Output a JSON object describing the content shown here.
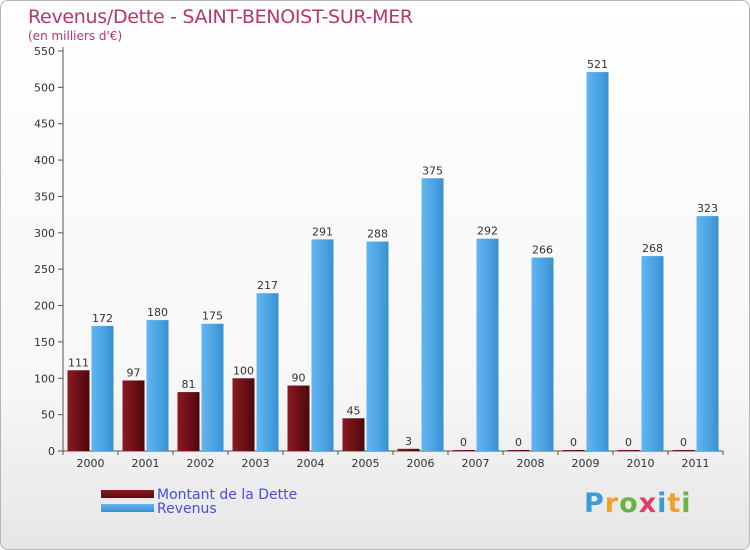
{
  "chart_data": {
    "type": "bar",
    "title": "Revenus/Dette - SAINT-BENOIST-SUR-MER",
    "subtitle": "(en milliers d'€)",
    "categories": [
      "2000",
      "2001",
      "2002",
      "2003",
      "2004",
      "2005",
      "2006",
      "2007",
      "2008",
      "2009",
      "2010",
      "2011"
    ],
    "series": [
      {
        "name": "Montant de la Dette",
        "color": "#6b0f16",
        "values": [
          111,
          97,
          81,
          100,
          90,
          45,
          3,
          0,
          0,
          0,
          0,
          0
        ]
      },
      {
        "name": "Revenus",
        "color": "#4ba3e3",
        "values": [
          172,
          180,
          175,
          217,
          291,
          288,
          375,
          292,
          266,
          521,
          268,
          323
        ]
      }
    ],
    "ylim": [
      0,
      550
    ],
    "yticks": [
      0,
      50,
      100,
      150,
      200,
      250,
      300,
      350,
      400,
      450,
      500,
      550
    ],
    "grid": false,
    "legend": "bottom-left"
  },
  "legend": {
    "items": [
      {
        "label": "Montant de la Dette",
        "color": "#6b0f16"
      },
      {
        "label": "Revenus",
        "color": "#4ba3e3"
      }
    ]
  },
  "logo": {
    "text": "Proxiti",
    "letters": [
      {
        "char": "P",
        "color": "#3a9bd9"
      },
      {
        "char": "r",
        "color": "#f2a02c"
      },
      {
        "char": "o",
        "color": "#6cb33f"
      },
      {
        "char": "x",
        "color": "#e33b6d"
      },
      {
        "char": "i",
        "color": "#3a9bd9"
      },
      {
        "char": "t",
        "color": "#f2a02c"
      },
      {
        "char": "i",
        "color": "#6cb33f"
      }
    ]
  }
}
